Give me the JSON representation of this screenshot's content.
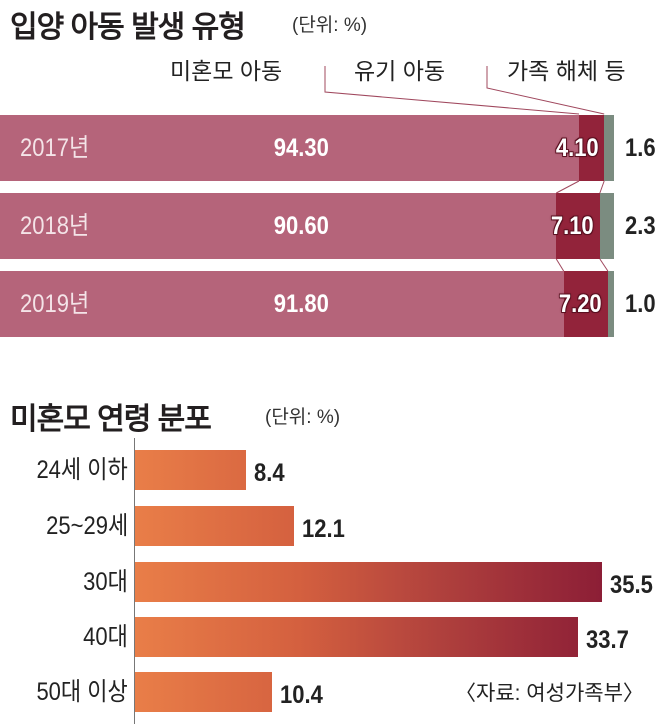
{
  "chart_data": [
    {
      "type": "bar",
      "stacked": true,
      "orientation": "horizontal",
      "title": "입양 아동 발생 유형",
      "unit": "(단위: %)",
      "categories": [
        "2017년",
        "2018년",
        "2019년"
      ],
      "series": [
        {
          "name": "미혼모 아동",
          "values": [
            94.3,
            90.6,
            91.8
          ],
          "labels": [
            "94.30",
            "90.60",
            "91.80"
          ],
          "color": "#b5647a"
        },
        {
          "name": "유기 아동",
          "values": [
            4.1,
            7.1,
            7.2
          ],
          "labels": [
            "4.10",
            "7.10",
            "7.20"
          ],
          "color": "#92233a"
        },
        {
          "name": "가족 해체 등",
          "values": [
            1.6,
            2.3,
            1.0
          ],
          "labels": [
            "1.6",
            "2.3",
            "1.0"
          ],
          "color": "#7b8c80"
        }
      ],
      "xlim": [
        0,
        100
      ]
    },
    {
      "type": "bar",
      "orientation": "horizontal",
      "title": "미혼모 연령 분포",
      "unit": "(단위: %)",
      "categories": [
        "24세 이하",
        "25~29세",
        "30대",
        "40대",
        "50대 이상"
      ],
      "values": [
        8.4,
        12.1,
        35.5,
        33.7,
        10.4
      ],
      "labels": [
        "8.4",
        "12.1",
        "35.5",
        "33.7",
        "10.4"
      ],
      "color_start": "#e97e48",
      "color_end": "#8c1e36",
      "xlim": [
        0,
        35.5
      ]
    }
  ],
  "source": "〈자료: 여성가족부〉"
}
